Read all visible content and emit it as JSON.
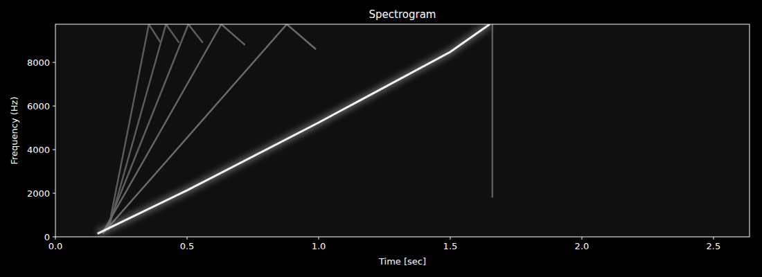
{
  "chart_data": {
    "type": "spectrogram",
    "title": "Spectrogram",
    "x_label": "Time [sec]",
    "y_label": "Frequency (Hz)",
    "xlim": [
      0,
      2.637
    ],
    "ylim": [
      0,
      9750
    ],
    "xticks": [
      {
        "value": 0,
        "label": "0.0"
      },
      0.5,
      {
        "value": 1,
        "label": "1.0"
      },
      1.5,
      {
        "value": 2,
        "label": "2.0"
      },
      2.5
    ],
    "yticks": [
      0,
      2000,
      4000,
      6000,
      8000
    ],
    "series": [
      {
        "color": "#5a5a5a",
        "x": [
          0.2,
          0.355,
          0.4
        ],
        "values": [
          300,
          9750,
          8900
        ]
      },
      {
        "color": "#5a5a5a",
        "x": [
          0.2,
          0.42,
          0.47
        ],
        "values": [
          300,
          9750,
          8900
        ]
      },
      {
        "color": "#5e5e5e",
        "x": [
          0.19,
          0.505,
          0.56
        ],
        "values": [
          250,
          9750,
          8900
        ]
      },
      {
        "color": "#646464",
        "x": [
          0.18,
          0.63,
          0.72
        ],
        "values": [
          200,
          9750,
          8800
        ]
      },
      {
        "color": "#6a6a6a",
        "x": [
          0.18,
          0.879,
          0.99
        ],
        "values": [
          150,
          9750,
          8600
        ]
      },
      {
        "color": "#5c5c5c",
        "x": [
          1.66,
          1.66
        ],
        "values": [
          1800,
          9750
        ]
      },
      {
        "color": "#f4f4f4",
        "x": [
          0.16,
          0.5,
          1.0,
          1.5,
          1.65
        ],
        "values": [
          150,
          2130,
          5240,
          8480,
          9750
        ]
      }
    ]
  }
}
